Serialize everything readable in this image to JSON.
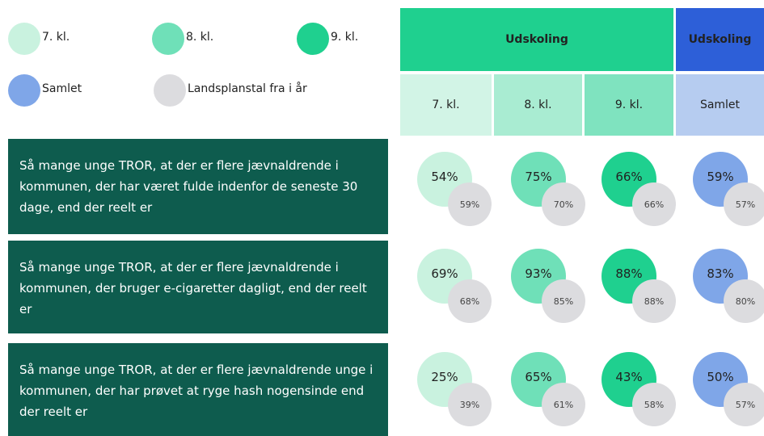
{
  "legend": [
    {
      "label": "7. kl.",
      "color": "#c9f2df"
    },
    {
      "label": "8. kl.",
      "color": "#6fe0b8"
    },
    {
      "label": "9. kl.",
      "color": "#1fd08f"
    },
    {
      "label": "Samlet",
      "color": "#7fa6e8"
    },
    {
      "label": "Landsplanstal fra i år",
      "color": "#dcdcdf"
    }
  ],
  "header": {
    "groups": [
      {
        "label": "Udskoling",
        "color": "#1fd08f"
      },
      {
        "label": "Udskoling",
        "color": "#2d5fd8"
      }
    ],
    "columns": [
      {
        "label": "7. kl.",
        "color": "#d2f4e6"
      },
      {
        "label": "8. kl.",
        "color": "#a9ecd2"
      },
      {
        "label": "9. kl.",
        "color": "#7fe3bf"
      },
      {
        "label": "Samlet",
        "color": "#b6ccf0"
      }
    ]
  },
  "rows": [
    {
      "text": "Så mange unge TROR, at der er flere jævnaldrende i kommunen, der har været fulde indenfor de seneste 30 dage, end der reelt er",
      "values": [
        "54%",
        "75%",
        "66%",
        "59%"
      ],
      "national": [
        "59%",
        "70%",
        "66%",
        "57%"
      ]
    },
    {
      "text": "Så mange unge TROR, at der er flere jævnaldrende i kommunen, der bruger e-cigaretter dagligt, end der reelt er",
      "values": [
        "69%",
        "93%",
        "88%",
        "83%"
      ],
      "national": [
        "68%",
        "85%",
        "88%",
        "80%"
      ]
    },
    {
      "text": "Så mange unge TROR, at der er flere jævnaldrende unge i kommunen, der har prøvet at ryge hash nogensinde end der reelt er",
      "values": [
        "25%",
        "65%",
        "43%",
        "50%"
      ],
      "national": [
        "39%",
        "61%",
        "58%",
        "57%"
      ]
    }
  ]
}
